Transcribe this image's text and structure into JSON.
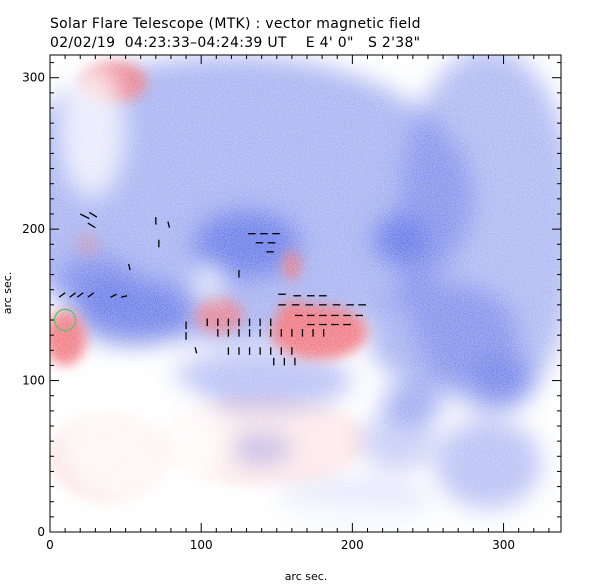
{
  "chart_data": {
    "type": "heatmap",
    "title": "Solar Flare Telescope (MTK) : vector magnetic field",
    "subtitle": "02/02/19  04:23:33–04:24:39 UT    E 4' 0\"   S 2'38\"",
    "xlabel": "arc sec.",
    "ylabel": "arc sec.",
    "xlim": [
      0,
      338
    ],
    "ylim": [
      0,
      315
    ],
    "x_ticks": [
      0,
      100,
      200,
      300
    ],
    "y_ticks": [
      0,
      100,
      200,
      300
    ],
    "colors": {
      "positive": "#f0707a",
      "negative": "#5a6ee6",
      "background": "#ffffff",
      "contour": "#3fcf6a",
      "vector": "#000000"
    },
    "positive_regions": [
      {
        "cx": 10,
        "cy": 128,
        "rx": 14,
        "ry": 18,
        "strength": 0.95
      },
      {
        "cx": 178,
        "cy": 132,
        "rx": 32,
        "ry": 18,
        "strength": 0.95
      },
      {
        "cx": 162,
        "cy": 143,
        "rx": 12,
        "ry": 10,
        "strength": 0.9
      },
      {
        "cx": 112,
        "cy": 143,
        "rx": 16,
        "ry": 12,
        "strength": 0.75
      },
      {
        "cx": 160,
        "cy": 176,
        "rx": 6,
        "ry": 10,
        "strength": 0.8
      },
      {
        "cx": 42,
        "cy": 297,
        "rx": 22,
        "ry": 14,
        "strength": 0.85
      },
      {
        "cx": 25,
        "cy": 190,
        "rx": 8,
        "ry": 9,
        "strength": 0.3
      },
      {
        "cx": 140,
        "cy": 60,
        "rx": 70,
        "ry": 30,
        "strength": 0.15
      },
      {
        "cx": 40,
        "cy": 50,
        "rx": 40,
        "ry": 30,
        "strength": 0.25
      }
    ],
    "negative_regions": [
      {
        "cx": 120,
        "cy": 220,
        "rx": 160,
        "ry": 95,
        "strength": 0.55
      },
      {
        "cx": 290,
        "cy": 200,
        "rx": 60,
        "ry": 120,
        "strength": 0.5
      },
      {
        "cx": 130,
        "cy": 190,
        "rx": 35,
        "ry": 22,
        "strength": 0.85
      },
      {
        "cx": 232,
        "cy": 193,
        "rx": 18,
        "ry": 16,
        "strength": 0.9
      },
      {
        "cx": 55,
        "cy": 145,
        "rx": 40,
        "ry": 22,
        "strength": 0.8
      },
      {
        "cx": 30,
        "cy": 165,
        "rx": 25,
        "ry": 18,
        "strength": 0.6
      },
      {
        "cx": 260,
        "cy": 130,
        "rx": 50,
        "ry": 35,
        "strength": 0.55
      },
      {
        "cx": 300,
        "cy": 100,
        "rx": 20,
        "ry": 18,
        "strength": 0.7
      },
      {
        "cx": 240,
        "cy": 85,
        "rx": 20,
        "ry": 14,
        "strength": 0.6
      },
      {
        "cx": 140,
        "cy": 100,
        "rx": 60,
        "ry": 20,
        "strength": 0.45
      },
      {
        "cx": 290,
        "cy": 45,
        "rx": 35,
        "ry": 30,
        "strength": 0.45
      },
      {
        "cx": 140,
        "cy": 55,
        "rx": 20,
        "ry": 10,
        "strength": 0.45
      },
      {
        "cx": 230,
        "cy": 60,
        "rx": 25,
        "ry": 20,
        "strength": 0.35
      },
      {
        "cx": 200,
        "cy": 20,
        "rx": 50,
        "ry": 15,
        "strength": 0.2
      }
    ],
    "cancel_regions": [
      {
        "cx": 28,
        "cy": 265,
        "rx": 22,
        "ry": 45
      },
      {
        "cx": 105,
        "cy": 165,
        "rx": 10,
        "ry": 12
      },
      {
        "cx": 60,
        "cy": 60,
        "rx": 55,
        "ry": 45
      },
      {
        "cx": 160,
        "cy": 10,
        "rx": 90,
        "ry": 12
      }
    ],
    "contour": {
      "cx": 10,
      "cy": 140,
      "rx": 7,
      "ry": 7
    },
    "vectors": [
      {
        "x": 20,
        "y": 210,
        "dx": 6,
        "dy": -3
      },
      {
        "x": 26,
        "y": 211,
        "dx": 5,
        "dy": -3
      },
      {
        "x": 25,
        "y": 204,
        "dx": 5,
        "dy": -3
      },
      {
        "x": 70,
        "y": 203,
        "dx": 0,
        "dy": 5
      },
      {
        "x": 78,
        "y": 205,
        "dx": 1,
        "dy": -4
      },
      {
        "x": 72,
        "y": 193,
        "dx": 0,
        "dy": -5
      },
      {
        "x": 52,
        "y": 177,
        "dx": 1,
        "dy": -4
      },
      {
        "x": 6,
        "y": 155,
        "dx": 4,
        "dy": 3
      },
      {
        "x": 13,
        "y": 155,
        "dx": 4,
        "dy": 3
      },
      {
        "x": 18,
        "y": 155,
        "dx": 4,
        "dy": 3
      },
      {
        "x": 25,
        "y": 155,
        "dx": 4,
        "dy": 3
      },
      {
        "x": 40,
        "y": 155,
        "dx": 4,
        "dy": 2
      },
      {
        "x": 47,
        "y": 155,
        "dx": 4,
        "dy": 1
      },
      {
        "x": 131,
        "y": 197,
        "dx": 5,
        "dy": 0
      },
      {
        "x": 139,
        "y": 197,
        "dx": 5,
        "dy": 0
      },
      {
        "x": 147,
        "y": 197,
        "dx": 5,
        "dy": 0
      },
      {
        "x": 136,
        "y": 191,
        "dx": 5,
        "dy": 0
      },
      {
        "x": 144,
        "y": 191,
        "dx": 5,
        "dy": 0
      },
      {
        "x": 143,
        "y": 185,
        "dx": 5,
        "dy": 0
      },
      {
        "x": 125,
        "y": 168,
        "dx": 0,
        "dy": 5
      },
      {
        "x": 151,
        "y": 157,
        "dx": 5,
        "dy": 0
      },
      {
        "x": 161,
        "y": 156,
        "dx": 5,
        "dy": 0
      },
      {
        "x": 170,
        "y": 156,
        "dx": 5,
        "dy": 0
      },
      {
        "x": 178,
        "y": 156,
        "dx": 5,
        "dy": 0
      },
      {
        "x": 151,
        "y": 150,
        "dx": 5,
        "dy": 0
      },
      {
        "x": 160,
        "y": 150,
        "dx": 5,
        "dy": 0
      },
      {
        "x": 169,
        "y": 150,
        "dx": 5,
        "dy": 0
      },
      {
        "x": 178,
        "y": 150,
        "dx": 5,
        "dy": 0
      },
      {
        "x": 187,
        "y": 150,
        "dx": 5,
        "dy": 0
      },
      {
        "x": 196,
        "y": 150,
        "dx": 5,
        "dy": 0
      },
      {
        "x": 204,
        "y": 150,
        "dx": 5,
        "dy": 0
      },
      {
        "x": 162,
        "y": 143,
        "dx": 5,
        "dy": 0
      },
      {
        "x": 170,
        "y": 143,
        "dx": 5,
        "dy": 0
      },
      {
        "x": 178,
        "y": 143,
        "dx": 5,
        "dy": 0
      },
      {
        "x": 186,
        "y": 143,
        "dx": 5,
        "dy": 0
      },
      {
        "x": 194,
        "y": 143,
        "dx": 5,
        "dy": 0
      },
      {
        "x": 202,
        "y": 143,
        "dx": 5,
        "dy": 0
      },
      {
        "x": 170,
        "y": 137,
        "dx": 5,
        "dy": 0
      },
      {
        "x": 178,
        "y": 137,
        "dx": 5,
        "dy": 0
      },
      {
        "x": 186,
        "y": 137,
        "dx": 5,
        "dy": 0
      },
      {
        "x": 194,
        "y": 137,
        "dx": 5,
        "dy": 0
      },
      {
        "x": 90,
        "y": 134,
        "dx": 0,
        "dy": 5
      },
      {
        "x": 90,
        "y": 127,
        "dx": 0,
        "dy": 5
      },
      {
        "x": 96,
        "y": 122,
        "dx": 1,
        "dy": -4
      },
      {
        "x": 104,
        "y": 136,
        "dx": 0,
        "dy": 5
      },
      {
        "x": 111,
        "y": 136,
        "dx": 0,
        "dy": 5
      },
      {
        "x": 118,
        "y": 136,
        "dx": 0,
        "dy": 5
      },
      {
        "x": 125,
        "y": 136,
        "dx": 0,
        "dy": 5
      },
      {
        "x": 132,
        "y": 136,
        "dx": 0,
        "dy": 5
      },
      {
        "x": 139,
        "y": 136,
        "dx": 0,
        "dy": 5
      },
      {
        "x": 146,
        "y": 136,
        "dx": 0,
        "dy": 5
      },
      {
        "x": 111,
        "y": 129,
        "dx": 0,
        "dy": 5
      },
      {
        "x": 118,
        "y": 129,
        "dx": 0,
        "dy": 5
      },
      {
        "x": 125,
        "y": 129,
        "dx": 0,
        "dy": 5
      },
      {
        "x": 132,
        "y": 129,
        "dx": 0,
        "dy": 5
      },
      {
        "x": 139,
        "y": 129,
        "dx": 0,
        "dy": 5
      },
      {
        "x": 146,
        "y": 129,
        "dx": 0,
        "dy": 5
      },
      {
        "x": 153,
        "y": 129,
        "dx": 0,
        "dy": 5
      },
      {
        "x": 160,
        "y": 129,
        "dx": 0,
        "dy": 5
      },
      {
        "x": 167,
        "y": 129,
        "dx": 0,
        "dy": 5
      },
      {
        "x": 174,
        "y": 129,
        "dx": 0,
        "dy": 5
      },
      {
        "x": 181,
        "y": 129,
        "dx": 0,
        "dy": 5
      },
      {
        "x": 118,
        "y": 122,
        "dx": 0,
        "dy": -5
      },
      {
        "x": 125,
        "y": 122,
        "dx": 0,
        "dy": -5
      },
      {
        "x": 132,
        "y": 122,
        "dx": 0,
        "dy": -5
      },
      {
        "x": 139,
        "y": 122,
        "dx": 0,
        "dy": -5
      },
      {
        "x": 146,
        "y": 122,
        "dx": 0,
        "dy": -5
      },
      {
        "x": 153,
        "y": 122,
        "dx": 0,
        "dy": -5
      },
      {
        "x": 160,
        "y": 122,
        "dx": 0,
        "dy": -5
      },
      {
        "x": 148,
        "y": 115,
        "dx": 0,
        "dy": -5
      },
      {
        "x": 155,
        "y": 115,
        "dx": 0,
        "dy": -5
      },
      {
        "x": 162,
        "y": 115,
        "dx": 0,
        "dy": -5
      }
    ]
  }
}
